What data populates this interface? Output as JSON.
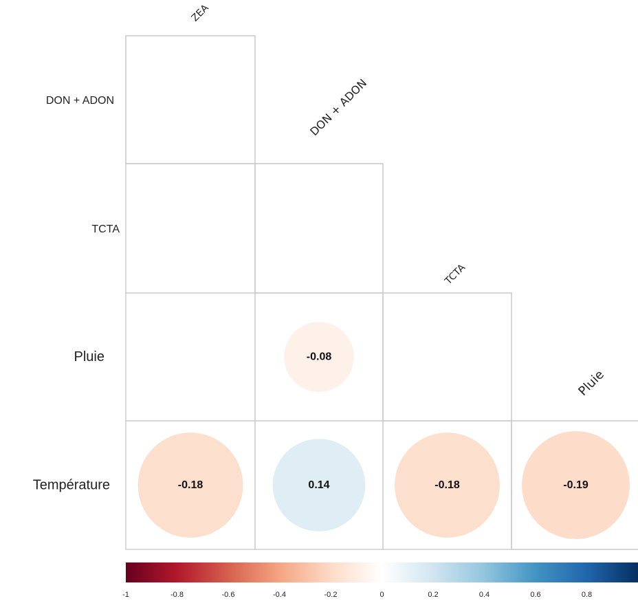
{
  "chart_data": {
    "type": "heatmap",
    "subtype": "correlation-matrix-lower-triangle-circles",
    "row_labels": [
      "DON + ADON",
      "TCTA",
      "Pluie",
      "Température"
    ],
    "column_labels": [
      "ZEA",
      "DON + ADON",
      "TCTA",
      "Pluie"
    ],
    "cells": [
      {
        "row": "DON + ADON",
        "col": "ZEA",
        "value": null
      },
      {
        "row": "TCTA",
        "col": "ZEA",
        "value": null
      },
      {
        "row": "TCTA",
        "col": "DON + ADON",
        "value": null
      },
      {
        "row": "Pluie",
        "col": "ZEA",
        "value": null
      },
      {
        "row": "Pluie",
        "col": "DON + ADON",
        "value": -0.08,
        "label": "-0.08"
      },
      {
        "row": "Pluie",
        "col": "TCTA",
        "value": null
      },
      {
        "row": "Température",
        "col": "ZEA",
        "value": -0.18,
        "label": "-0.18"
      },
      {
        "row": "Température",
        "col": "DON + ADON",
        "value": 0.14,
        "label": "0.14"
      },
      {
        "row": "Température",
        "col": "TCTA",
        "value": -0.18,
        "label": "-0.18"
      },
      {
        "row": "Température",
        "col": "Pluie",
        "value": -0.19,
        "label": "-0.19"
      }
    ],
    "colorbar": {
      "range": [
        -1,
        1
      ],
      "ticks": [
        "-1",
        "-0.8",
        "-0.6",
        "-0.4",
        "-0.2",
        "0",
        "0.2",
        "0.4",
        "0.6",
        "0.8"
      ],
      "colors": [
        "#67001f",
        "#b2182b",
        "#d6604d",
        "#f4a582",
        "#fddbc7",
        "#ffffff",
        "#d1e5f0",
        "#92c5de",
        "#4393c3",
        "#2166ac",
        "#053061"
      ]
    },
    "grid": true
  }
}
